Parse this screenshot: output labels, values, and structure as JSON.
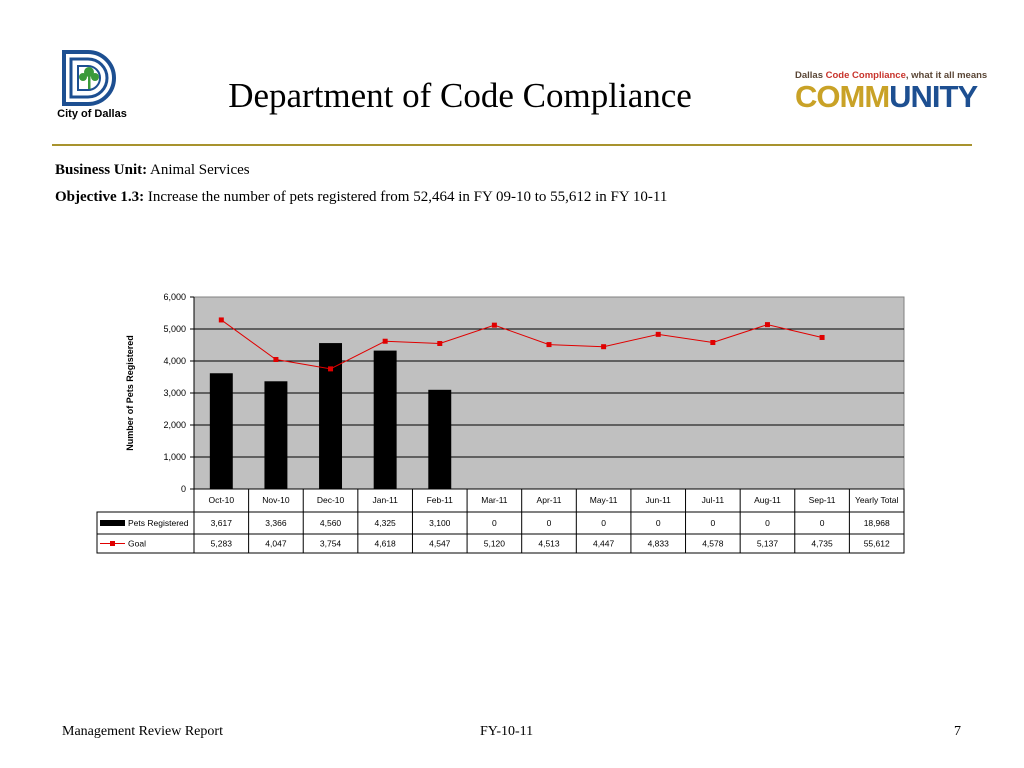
{
  "header": {
    "title": "Department of Code Compliance",
    "city_logo_text": "City of Dallas",
    "community_logo": {
      "tagline_prefix": "Dallas ",
      "tagline_highlight": "Code Compliance",
      "tagline_suffix": ", what it all means",
      "word_part1": "COMM",
      "word_part2": "UNITY"
    }
  },
  "business_unit": {
    "label": "Business Unit:",
    "value": "Animal Services"
  },
  "objective": {
    "label": "Objective 1.3:",
    "value": "Increase the number of pets registered from 52,464 in FY 09-10 to 55,612 in FY 10-11"
  },
  "chart_data": {
    "type": "bar",
    "ylabel": "Number of Pets Registered",
    "ylim": [
      0,
      6000
    ],
    "yticks": [
      "6,000",
      "5,000",
      "4,000",
      "3,000",
      "2,000",
      "1,000",
      "0"
    ],
    "categories": [
      "Oct-10",
      "Nov-10",
      "Dec-10",
      "Jan-11",
      "Feb-11",
      "Mar-11",
      "Apr-11",
      "May-11",
      "Jun-11",
      "Jul-11",
      "Aug-11",
      "Sep-11"
    ],
    "total_header": "Yearly Total",
    "grid": true,
    "series": [
      {
        "name": "Pets Registered",
        "kind": "bar",
        "color": "#000000",
        "values": [
          3617,
          3366,
          4560,
          4325,
          3100,
          0,
          0,
          0,
          0,
          0,
          0,
          0
        ],
        "labels": [
          "3,617",
          "3,366",
          "4,560",
          "4,325",
          "3,100",
          "0",
          "0",
          "0",
          "0",
          "0",
          "0",
          "0"
        ],
        "total": "18,968"
      },
      {
        "name": "Goal",
        "kind": "line",
        "color": "#e00000",
        "values": [
          5283,
          4047,
          3754,
          4618,
          4547,
          5120,
          4513,
          4447,
          4833,
          4578,
          5137,
          4735
        ],
        "labels": [
          "5,283",
          "4,047",
          "3,754",
          "4,618",
          "4,547",
          "5,120",
          "4,513",
          "4,447",
          "4,833",
          "4,578",
          "5,137",
          "4,735"
        ],
        "total": "55,612"
      }
    ],
    "plot_background": "#c0c0c0"
  },
  "footer": {
    "left": "Management Review Report",
    "center": "FY-10-11",
    "right": "7"
  }
}
